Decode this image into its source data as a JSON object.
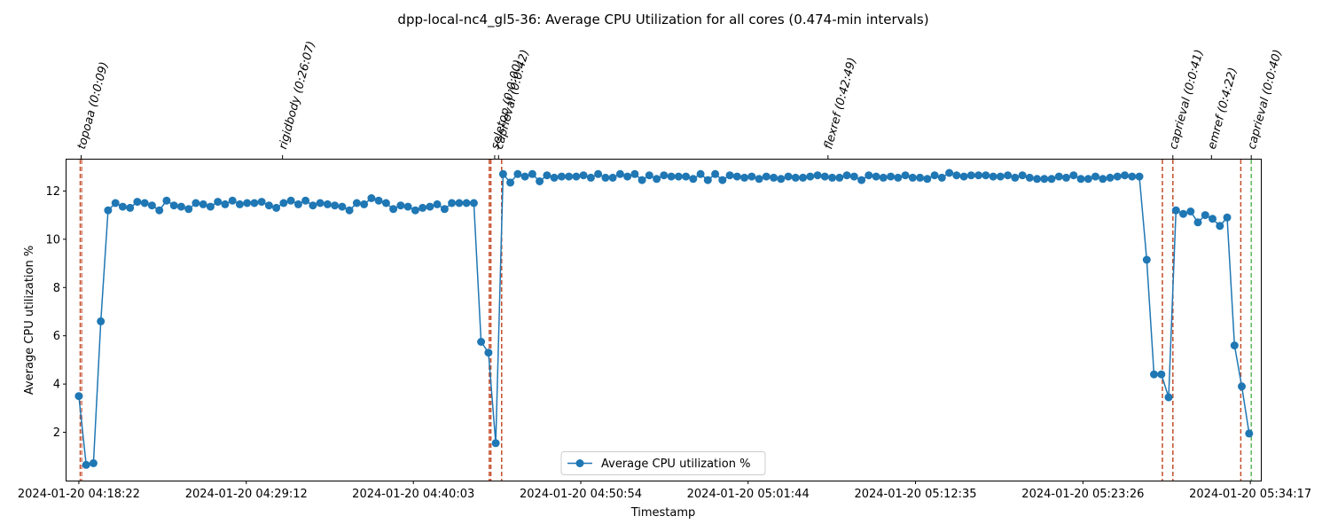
{
  "chart_data": {
    "type": "line",
    "title": "dpp-local-nc4_gl5-36: Average CPU Utilization for all cores (0.474-min intervals)",
    "xlabel": "Timestamp",
    "ylabel": "Average CPU utilization %",
    "x_tick_labels": [
      "2024-01-20 04:18:22",
      "2024-01-20 04:29:12",
      "2024-01-20 04:40:03",
      "2024-01-20 04:50:54",
      "2024-01-20 05:01:44",
      "2024-01-20 05:12:35",
      "2024-01-20 05:23:26",
      "2024-01-20 05:34:17"
    ],
    "x_range_minutes": [
      -0.8,
      76.6
    ],
    "x_tick_minutes": [
      0,
      10.85,
      21.68,
      32.53,
      43.37,
      54.22,
      65.07,
      75.92
    ],
    "ylim": [
      0,
      13.3
    ],
    "y_ticks": [
      2,
      4,
      6,
      8,
      10,
      12
    ],
    "grid": false,
    "legend_position": "lower center",
    "series": [
      {
        "name": "Average CPU utilization %",
        "color": "#1f77b4",
        "interval_minutes": 0.474,
        "values": [
          3.5,
          0.65,
          0.72,
          6.6,
          11.2,
          11.5,
          11.35,
          11.3,
          11.55,
          11.5,
          11.4,
          11.2,
          11.6,
          11.4,
          11.35,
          11.25,
          11.5,
          11.45,
          11.35,
          11.55,
          11.45,
          11.6,
          11.45,
          11.5,
          11.5,
          11.55,
          11.4,
          11.3,
          11.5,
          11.6,
          11.45,
          11.6,
          11.4,
          11.5,
          11.45,
          11.4,
          11.35,
          11.2,
          11.5,
          11.45,
          11.7,
          11.6,
          11.5,
          11.25,
          11.4,
          11.35,
          11.2,
          11.3,
          11.35,
          11.45,
          11.25,
          11.5,
          11.5,
          11.5,
          11.5,
          5.75,
          5.3,
          1.55,
          12.7,
          12.35,
          12.7,
          12.6,
          12.7,
          12.4,
          12.65,
          12.55,
          12.6,
          12.6,
          12.6,
          12.65,
          12.55,
          12.7,
          12.55,
          12.55,
          12.7,
          12.6,
          12.7,
          12.45,
          12.65,
          12.5,
          12.65,
          12.6,
          12.6,
          12.6,
          12.5,
          12.7,
          12.45,
          12.7,
          12.45,
          12.65,
          12.6,
          12.55,
          12.6,
          12.5,
          12.6,
          12.55,
          12.5,
          12.6,
          12.55,
          12.55,
          12.6,
          12.65,
          12.6,
          12.55,
          12.55,
          12.65,
          12.6,
          12.45,
          12.65,
          12.6,
          12.55,
          12.6,
          12.55,
          12.65,
          12.55,
          12.55,
          12.5,
          12.65,
          12.55,
          12.75,
          12.65,
          12.6,
          12.65,
          12.65,
          12.65,
          12.6,
          12.6,
          12.65,
          12.55,
          12.65,
          12.55,
          12.5,
          12.5,
          12.5,
          12.6,
          12.55,
          12.65,
          12.5,
          12.5,
          12.6,
          12.5,
          12.55,
          12.6,
          12.65,
          12.6,
          12.6,
          9.15,
          4.4,
          4.4,
          3.45,
          11.2,
          11.05,
          11.15,
          10.7,
          11.0,
          10.85,
          10.55,
          10.9,
          5.6,
          3.9,
          1.95
        ]
      }
    ],
    "vertical_lines": [
      {
        "minute": 0.09,
        "color": "#c44e2b",
        "style": "dashed"
      },
      {
        "minute": 0.2,
        "color": "#d98c7a",
        "style": "dashed"
      },
      {
        "minute": 26.6,
        "color": "#c44e2b",
        "style": "dashed"
      },
      {
        "minute": 26.7,
        "color": "#c44e2b",
        "style": "dashed"
      },
      {
        "minute": 27.4,
        "color": "#c44e2b",
        "style": "dashed"
      },
      {
        "minute": 70.22,
        "color": "#c44e2b",
        "style": "dashed"
      },
      {
        "minute": 70.9,
        "color": "#c44e2b",
        "style": "dashed"
      },
      {
        "minute": 75.3,
        "color": "#c44e2b",
        "style": "dashed"
      },
      {
        "minute": 75.98,
        "color": "#5cb85c",
        "style": "dashed"
      }
    ],
    "annotations": [
      {
        "text": "topoaa (0:0:09)",
        "minute": 0.15
      },
      {
        "text": "rigidbody (0:26:07)",
        "minute": 13.2
      },
      {
        "text": "seletop (0:0:00)",
        "minute": 26.95
      },
      {
        "text": "caprieval (0:0:42)",
        "minute": 27.2
      },
      {
        "text": "flexref (0:42:49)",
        "minute": 48.55
      },
      {
        "text": "caprieval (0:0:41)",
        "minute": 70.9
      },
      {
        "text": "emref (0:4:22)",
        "minute": 73.4
      },
      {
        "text": "caprieval (0:0:40)",
        "minute": 75.98
      }
    ]
  }
}
